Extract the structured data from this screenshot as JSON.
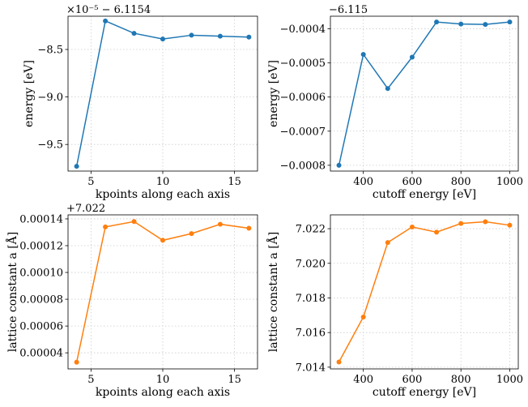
{
  "colors": {
    "blue": "#1f77b4",
    "orange": "#ff7f0e",
    "grid": "#cccccc"
  },
  "chart_data": [
    {
      "type": "line",
      "xlabel": "kpoints along each axis",
      "ylabel": "energy [eV]",
      "offset_label": "×10⁻⁵ − 6.1154",
      "x": [
        4,
        6,
        8,
        10,
        12,
        14,
        16
      ],
      "y": [
        -9.73,
        -8.2,
        -8.33,
        -8.39,
        -8.35,
        -8.36,
        -8.37
      ],
      "xlim": [
        3.4,
        16.6
      ],
      "ylim": [
        -9.78,
        -8.15
      ],
      "xticks": [
        5,
        10,
        15
      ],
      "xtick_labels": [
        "5",
        "10",
        "15"
      ],
      "yticks": [
        -9.5,
        -9.0,
        -8.5
      ],
      "ytick_labels": [
        "−9.5",
        "−9.0",
        "−8.5"
      ],
      "grid": true,
      "color": "#1f77b4"
    },
    {
      "type": "line",
      "xlabel": "cutoff energy [eV]",
      "ylabel": "energy [eV]",
      "offset_label": "−6.115",
      "x": [
        300,
        400,
        500,
        600,
        700,
        800,
        900,
        1000
      ],
      "y": [
        -0.0008,
        -0.000475,
        -0.000575,
        -0.000483,
        -0.00038,
        -0.000386,
        -0.000387,
        -0.00038
      ],
      "xlim": [
        265,
        1035
      ],
      "ylim": [
        -0.000817,
        -0.000363
      ],
      "xticks": [
        400,
        600,
        800,
        1000
      ],
      "xtick_labels": [
        "400",
        "600",
        "800",
        "1000"
      ],
      "yticks": [
        -0.0008,
        -0.0007,
        -0.0006,
        -0.0005,
        -0.0004
      ],
      "ytick_labels": [
        "−0.0008",
        "−0.0007",
        "−0.0006",
        "−0.0005",
        "−0.0004"
      ],
      "grid": true,
      "color": "#1f77b4"
    },
    {
      "type": "line",
      "xlabel": "kpoints along each axis",
      "ylabel": "lattice constant a [Å]",
      "offset_label": "+7.022",
      "x": [
        4,
        6,
        8,
        10,
        12,
        14,
        16
      ],
      "y": [
        3.3e-05,
        0.000134,
        0.000138,
        0.000124,
        0.000129,
        0.000136,
        0.000133
      ],
      "xlim": [
        3.4,
        16.6
      ],
      "ylim": [
        2.8e-05,
        0.000143
      ],
      "xticks": [
        5,
        10,
        15
      ],
      "xtick_labels": [
        "5",
        "10",
        "15"
      ],
      "yticks": [
        4e-05,
        6e-05,
        8e-05,
        0.0001,
        0.00012,
        0.00014
      ],
      "ytick_labels": [
        "0.00004",
        "0.00006",
        "0.00008",
        "0.00010",
        "0.00012",
        "0.00014"
      ],
      "grid": true,
      "color": "#ff7f0e"
    },
    {
      "type": "line",
      "xlabel": "cutoff energy [eV]",
      "ylabel": "lattice constant a [Å]",
      "offset_label": "",
      "x": [
        300,
        400,
        500,
        600,
        700,
        800,
        900,
        1000
      ],
      "y": [
        7.0143,
        7.0169,
        7.0212,
        7.0221,
        7.0218,
        7.0223,
        7.0224,
        7.0222
      ],
      "xlim": [
        265,
        1035
      ],
      "ylim": [
        7.0139,
        7.0228
      ],
      "xticks": [
        400,
        600,
        800,
        1000
      ],
      "xtick_labels": [
        "400",
        "600",
        "800",
        "1000"
      ],
      "yticks": [
        7.014,
        7.016,
        7.018,
        7.02,
        7.022
      ],
      "ytick_labels": [
        "7.014",
        "7.016",
        "7.018",
        "7.020",
        "7.022"
      ],
      "grid": true,
      "color": "#ff7f0e"
    }
  ]
}
